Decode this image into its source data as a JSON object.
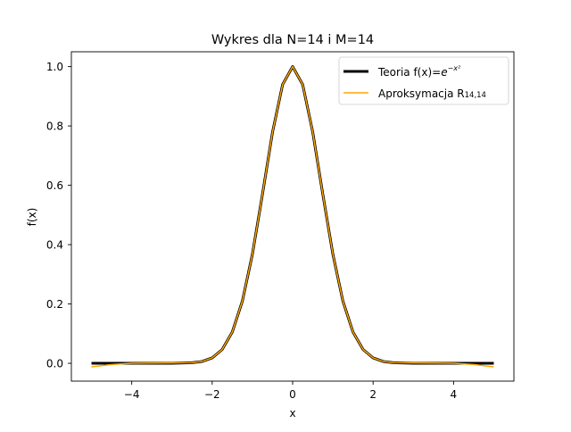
{
  "chart_data": {
    "type": "line",
    "title": "Wykres dla N=14 i M=14",
    "xlabel": "x",
    "ylabel": "f(x)",
    "xlim": [
      -5.5,
      5.5
    ],
    "ylim": [
      -0.06,
      1.05
    ],
    "xticks": [
      -4,
      -2,
      0,
      2,
      4
    ],
    "xtick_labels": [
      "−4",
      "−2",
      "0",
      "2",
      "4"
    ],
    "yticks": [
      0.0,
      0.2,
      0.4,
      0.6,
      0.8,
      1.0
    ],
    "ytick_labels": [
      "0.0",
      "0.2",
      "0.4",
      "0.6",
      "0.8",
      "1.0"
    ],
    "grid": false,
    "legend_position": "top-right",
    "series": [
      {
        "name": "Teoria f(x)=e^{-x^2}",
        "legend_text": "Teoria f(x)=",
        "legend_math": "e",
        "legend_math_sup": "−x²",
        "color": "#000000",
        "x": [
          -5.0,
          -4.5,
          -4.0,
          -3.5,
          -3.0,
          -2.5,
          -2.25,
          -2.0,
          -1.75,
          -1.5,
          -1.25,
          -1.0,
          -0.75,
          -0.5,
          -0.25,
          0.0,
          0.25,
          0.5,
          0.75,
          1.0,
          1.25,
          1.5,
          1.75,
          2.0,
          2.25,
          2.5,
          3.0,
          3.5,
          4.0,
          4.5,
          5.0
        ],
        "y": [
          0.0,
          0.0,
          0.0,
          0.0,
          0.0001,
          0.0019,
          0.0063,
          0.0183,
          0.0468,
          0.1054,
          0.2096,
          0.3679,
          0.5698,
          0.7788,
          0.9394,
          1.0,
          0.9394,
          0.7788,
          0.5698,
          0.3679,
          0.2096,
          0.1054,
          0.0468,
          0.0183,
          0.0063,
          0.0019,
          0.0001,
          0.0,
          0.0,
          0.0,
          0.0
        ]
      },
      {
        "name": "Aproksymacja R14,14",
        "legend_text": "Aproksymacja R",
        "legend_sub": "14,14",
        "color": "#ffa500",
        "x": [
          -5.0,
          -4.5,
          -4.0,
          -3.5,
          -3.0,
          -2.5,
          -2.25,
          -2.0,
          -1.75,
          -1.5,
          -1.25,
          -1.0,
          -0.75,
          -0.5,
          -0.25,
          0.0,
          0.25,
          0.5,
          0.75,
          1.0,
          1.25,
          1.5,
          1.75,
          2.0,
          2.25,
          2.5,
          3.0,
          3.5,
          4.0,
          4.5,
          5.0
        ],
        "y": [
          -0.012,
          -0.004,
          0.0,
          0.001,
          0.0012,
          0.0022,
          0.0064,
          0.0183,
          0.0468,
          0.1054,
          0.2096,
          0.3679,
          0.5698,
          0.7788,
          0.9394,
          1.0,
          0.9394,
          0.7788,
          0.5698,
          0.3679,
          0.2096,
          0.1054,
          0.0468,
          0.0183,
          0.0064,
          0.0022,
          0.0012,
          0.001,
          0.0,
          -0.004,
          -0.012
        ]
      }
    ]
  }
}
